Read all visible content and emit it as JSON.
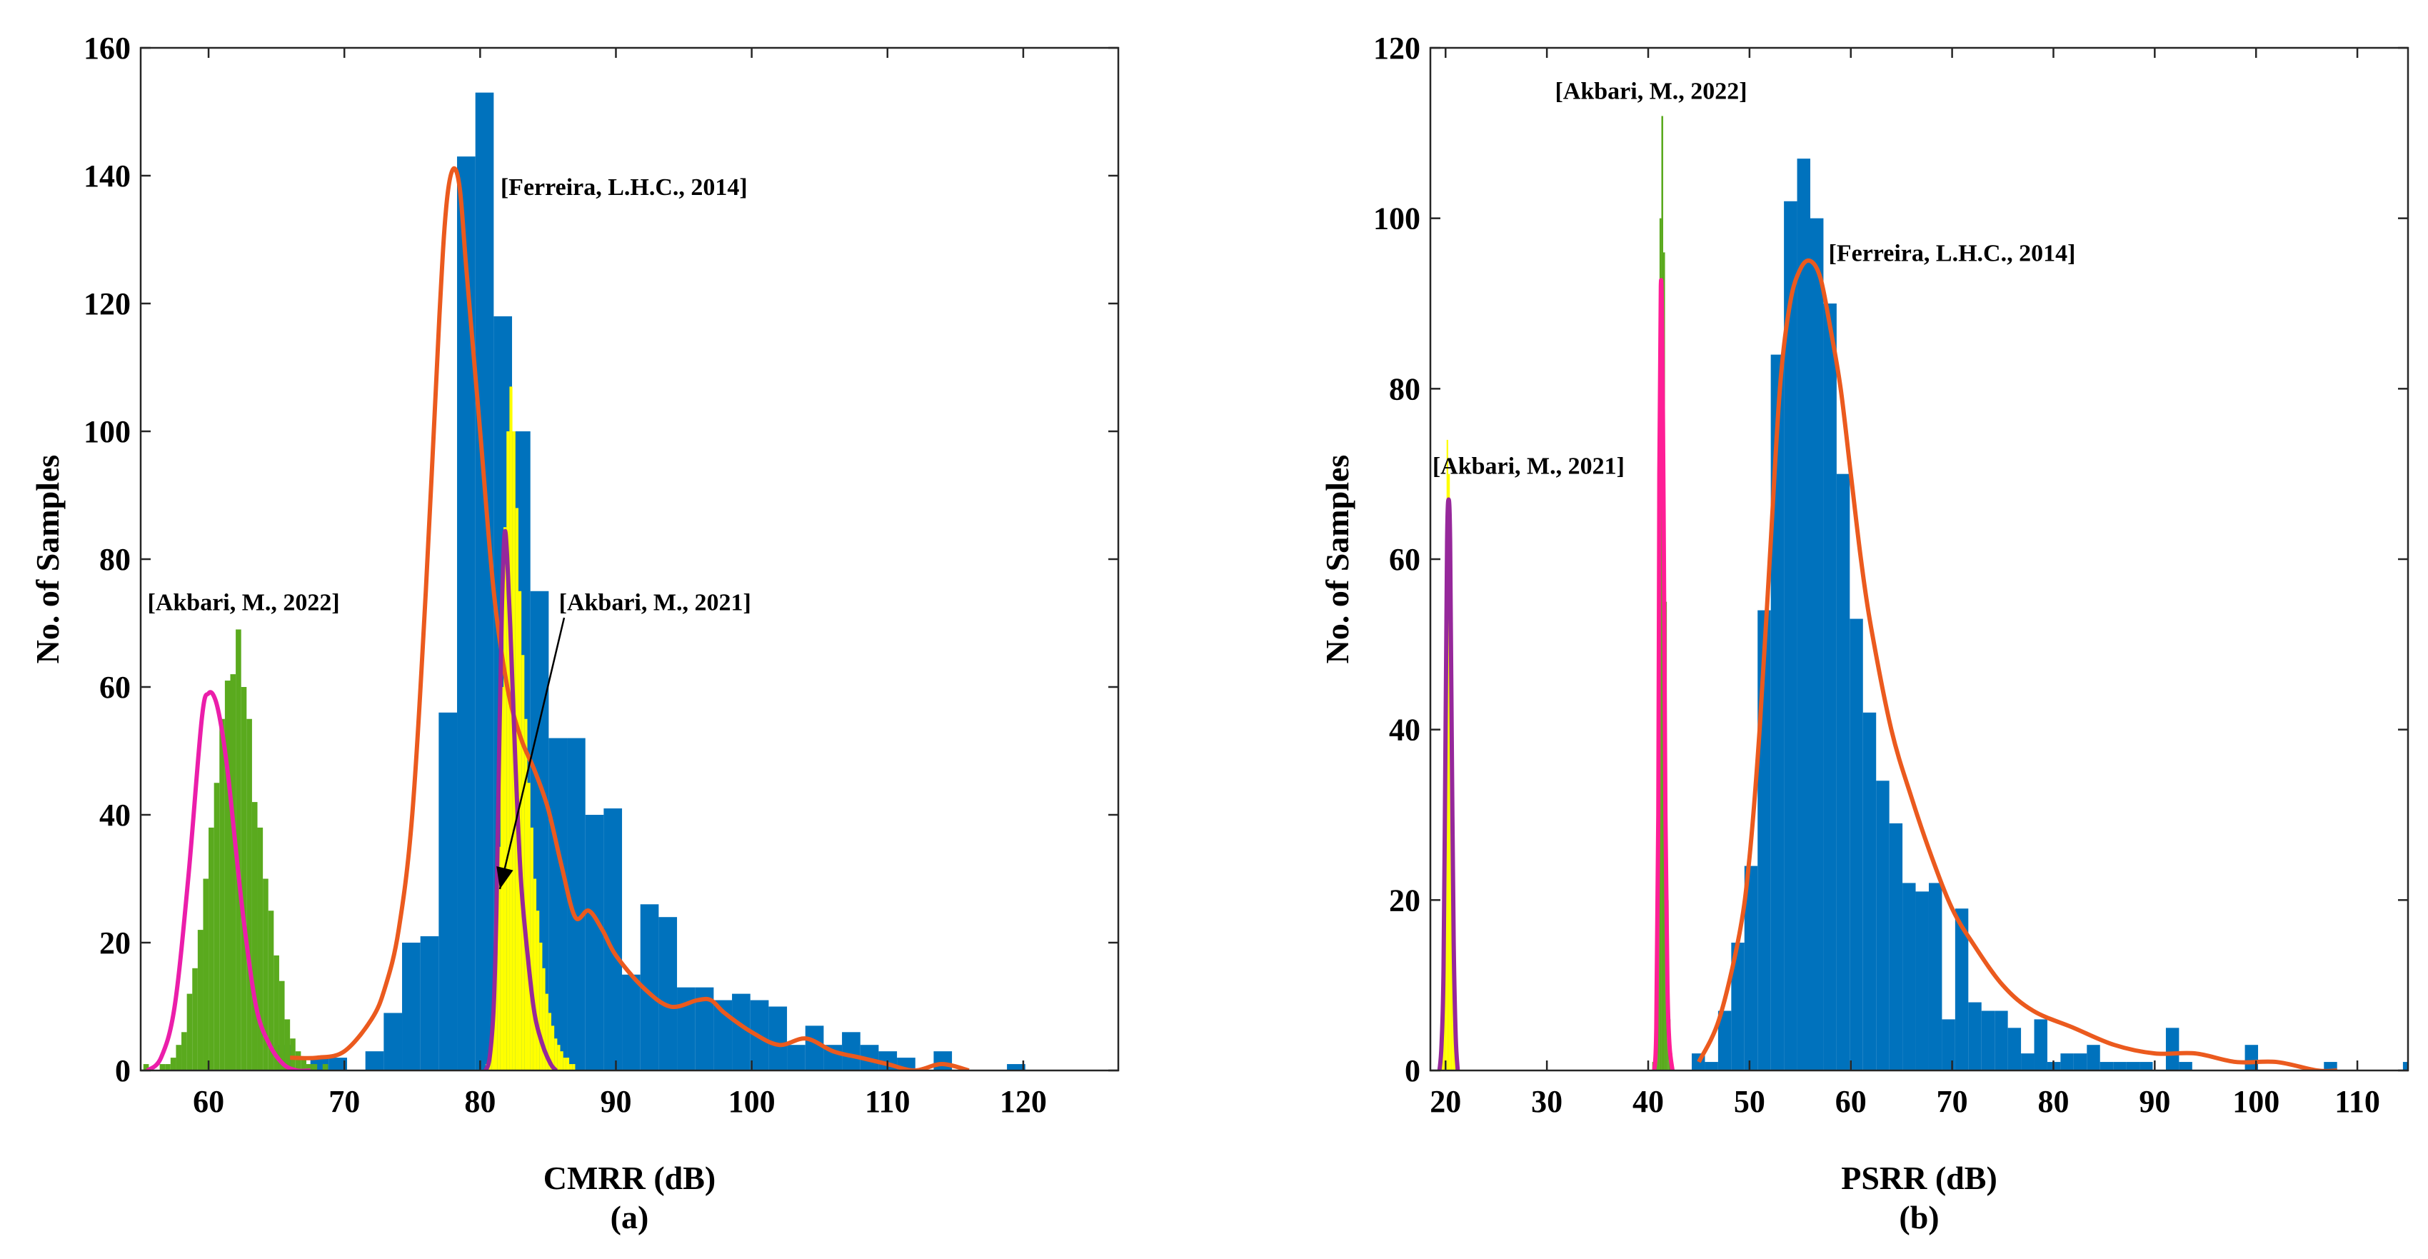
{
  "chart_data": [
    {
      "type": "histogram",
      "caption": "(a)",
      "xlabel": "CMRR (dB)",
      "ylabel": "No. of Samples",
      "xlim": [
        55,
        127
      ],
      "ylim": [
        0,
        160
      ],
      "xticks": [
        60,
        70,
        80,
        90,
        100,
        110,
        120
      ],
      "yticks": [
        0,
        20,
        40,
        60,
        80,
        100,
        120,
        140,
        160
      ],
      "bins": [
        {
          "name": "[Ferreira, L.H.C., 2014]",
          "color": "#0072BD",
          "edges_start": 64.8,
          "width": 1.35,
          "values": [
            4,
            0,
            2,
            2,
            0,
            3,
            9,
            20,
            21,
            56,
            143,
            153,
            118,
            100,
            75,
            52,
            52,
            40,
            41,
            15,
            26,
            24,
            13,
            13,
            11,
            12,
            11,
            10,
            4,
            7,
            4,
            6,
            4,
            3,
            2,
            0,
            3,
            0,
            0,
            0,
            1,
            0,
            0,
            0,
            0,
            0,
            0,
            0,
            0,
            0,
            0,
            0,
            0,
            0,
            0,
            0,
            0,
            0,
            0,
            0,
            1
          ]
        },
        {
          "name": "[Akbari, M., 2022]",
          "color": "#5AAA1E",
          "edges_start": 55.2,
          "width": 0.4,
          "values": [
            1,
            0,
            0,
            1,
            1,
            2,
            4,
            6,
            12,
            16,
            22,
            30,
            38,
            45,
            55,
            61,
            62,
            69,
            60,
            55,
            42,
            38,
            30,
            25,
            18,
            14,
            8,
            5,
            3,
            2,
            1,
            1,
            0,
            1
          ]
        },
        {
          "name": "[Akbari, M., 2021]",
          "color": "#FFFF00",
          "edges_start": 80.4,
          "width": 0.22,
          "values": [
            1,
            3,
            8,
            18,
            35,
            60,
            85,
            100,
            107,
            100,
            88,
            75,
            65,
            55,
            45,
            38,
            30,
            25,
            20,
            16,
            12,
            9,
            7,
            5,
            4,
            3,
            2,
            2,
            1,
            1
          ]
        }
      ],
      "fits": [
        {
          "name": "[Ferreira, L.H.C., 2014]",
          "color": "#EB5A1E",
          "x": [
            66,
            68,
            70,
            72,
            73,
            74,
            75,
            76,
            77,
            77.5,
            78,
            78.5,
            79,
            80,
            81,
            82,
            83,
            84,
            85,
            86,
            87,
            88,
            89,
            90,
            92,
            94,
            96,
            97,
            98,
            100,
            102,
            104,
            106,
            108,
            110,
            112,
            114,
            116
          ],
          "y": [
            2,
            2,
            3,
            8,
            13,
            22,
            40,
            75,
            118,
            135,
            141,
            138,
            125,
            100,
            75,
            60,
            52,
            47,
            41,
            32,
            24,
            25,
            22,
            18,
            13,
            10,
            11,
            11,
            9,
            6,
            4,
            5,
            3,
            2,
            1,
            0,
            1,
            0
          ]
        },
        {
          "name": "[Akbari, M., 2022]",
          "color": "#EB1EAA",
          "x": [
            55.5,
            56.5,
            57.5,
            58.5,
            59.5,
            60,
            60.5,
            61,
            61.5,
            62.5,
            63.5,
            64.5,
            65.5,
            66.5,
            67.5
          ],
          "y": [
            0,
            2,
            10,
            30,
            55,
            59,
            58,
            53,
            45,
            25,
            10,
            4,
            1,
            0,
            0
          ]
        },
        {
          "name": "[Akbari, M., 2021]",
          "color": "#96289B",
          "x": [
            80.4,
            80.7,
            81,
            81.2,
            81.4,
            81.6,
            81.8,
            82,
            82.3,
            82.6,
            83,
            83.5,
            84,
            84.6,
            85.2,
            85.6
          ],
          "y": [
            0,
            2,
            10,
            25,
            50,
            72,
            84,
            80,
            65,
            48,
            30,
            18,
            9,
            4,
            1,
            0
          ]
        }
      ],
      "annotations": [
        {
          "text": "[Ferreira, L.H.C., 2014]",
          "x": 81.5,
          "y": 137
        },
        {
          "text": "[Akbari, M., 2022]",
          "x": 55.5,
          "y": 72
        },
        {
          "text": "[Akbari, M., 2021]",
          "x": 85.8,
          "y": 72
        }
      ]
    },
    {
      "type": "histogram",
      "caption": "(b)",
      "xlabel": "PSRR (dB)",
      "ylabel": "No. of Samples",
      "xlim": [
        18.5,
        115
      ],
      "ylim": [
        0,
        120
      ],
      "xticks": [
        20,
        30,
        40,
        50,
        60,
        70,
        80,
        90,
        100,
        110
      ],
      "yticks": [
        0,
        20,
        40,
        60,
        80,
        100,
        120
      ],
      "bins": [
        {
          "name": "[Ferreira, L.H.C., 2014]",
          "color": "#0072BD",
          "edges_start": 44.3,
          "width": 1.3,
          "values": [
            2,
            1,
            7,
            15,
            24,
            54,
            84,
            102,
            107,
            100,
            90,
            70,
            53,
            42,
            34,
            29,
            22,
            21,
            22,
            6,
            19,
            8,
            7,
            7,
            5,
            2,
            6,
            1,
            2,
            2,
            3,
            1,
            1,
            1,
            1,
            0,
            5,
            1,
            0,
            0,
            0,
            0,
            3,
            0,
            0,
            0,
            0,
            0,
            1,
            0,
            0,
            0,
            0,
            0,
            1
          ]
        },
        {
          "name": "[Akbari, M., 2022]",
          "color": "#5AAA1E",
          "edges_start": 40.4,
          "width": 0.18,
          "values": [
            1,
            3,
            10,
            45,
            100,
            112,
            96,
            55,
            20,
            6,
            2
          ]
        },
        {
          "name": "[Akbari, M., 2021]",
          "color": "#FFFF00",
          "edges_start": 19.3,
          "width": 0.16,
          "values": [
            1,
            4,
            10,
            30,
            55,
            74,
            70,
            45,
            20,
            6,
            2
          ]
        }
      ],
      "fits": [
        {
          "name": "[Ferreira, L.H.C., 2014]",
          "color": "#EB5A1E",
          "x": [
            45,
            47,
            49,
            50,
            51,
            52,
            53,
            54,
            55,
            56,
            57,
            58,
            59,
            60,
            61,
            62,
            64,
            66,
            68,
            70,
            72,
            75,
            78,
            82,
            86,
            90,
            94,
            98,
            102,
            106,
            108
          ],
          "y": [
            1,
            6,
            16,
            25,
            40,
            60,
            80,
            90,
            94,
            95,
            93,
            87,
            80,
            70,
            60,
            52,
            40,
            32,
            25,
            19,
            15,
            10,
            7,
            5,
            3,
            2,
            2,
            1,
            1,
            0,
            0
          ]
        },
        {
          "name": "[Akbari, M., 2022]",
          "color": "#FF1E96",
          "x": [
            40.6,
            40.8,
            41,
            41.1,
            41.25,
            41.4,
            41.55,
            41.7,
            41.9,
            42.1,
            42.4
          ],
          "y": [
            0,
            5,
            30,
            70,
            92,
            85,
            60,
            30,
            10,
            3,
            0
          ]
        },
        {
          "name": "[Akbari, M., 2021]",
          "color": "#96289B",
          "x": [
            19.4,
            19.6,
            19.8,
            20,
            20.15,
            20.3,
            20.45,
            20.6,
            20.8,
            21,
            21.2
          ],
          "y": [
            0,
            3,
            12,
            40,
            62,
            67,
            62,
            40,
            15,
            4,
            0
          ]
        }
      ],
      "annotations": [
        {
          "text": "[Akbari, M., 2022]",
          "x": 30.8,
          "y": 114
        },
        {
          "text": "[Ferreira, L.H.C., 2014]",
          "x": 57.8,
          "y": 95
        },
        {
          "text": "[Akbari, M., 2021]",
          "x": 18.7,
          "y": 70
        }
      ]
    }
  ]
}
